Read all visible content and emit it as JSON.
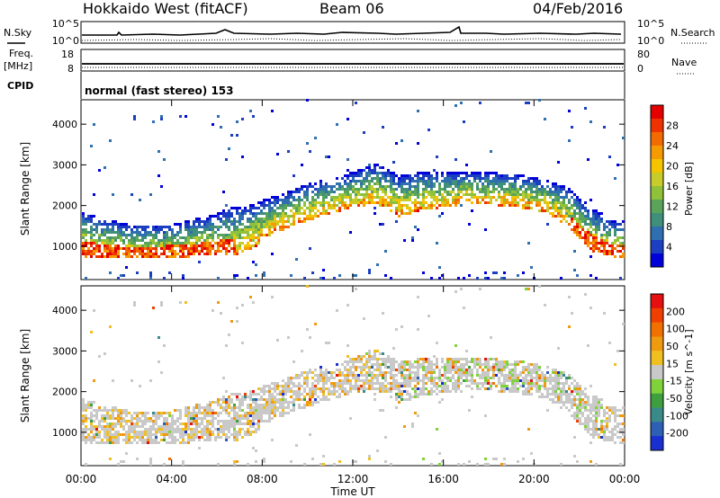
{
  "header": {
    "title": "Hokkaido West (fitACF)",
    "beam": "Beam 06",
    "date": "04/Feb/2016"
  },
  "status": {
    "nsky_label": "N.Sky",
    "nsearch_label": "N.Search",
    "freq_label_1": "Freq.",
    "freq_label_2": "[MHz]",
    "nave_label": "Nave",
    "cpid_label": "CPID",
    "cpid_value": "normal (fast stereo) 153",
    "noise_ticks_left": [
      "10^5",
      "10^0"
    ],
    "noise_ticks_right": [
      "10^5",
      "10^0"
    ],
    "freq_ticks": [
      "18",
      "8"
    ],
    "nave_ticks": [
      "80",
      "0"
    ]
  },
  "chart_data": [
    {
      "type": "heatmap",
      "title": "",
      "xlabel": "",
      "ylabel": "Slant Range [km]",
      "x_ticks": [
        "00:00",
        "04:00",
        "08:00",
        "12:00",
        "16:00",
        "20:00",
        "00:00"
      ],
      "y_ticks": [
        1000,
        2000,
        3000,
        4000
      ],
      "xlim_hours": [
        0,
        24
      ],
      "ylim_km": [
        180,
        4600
      ],
      "colorbar": {
        "label": "Power [dB]",
        "ticks": [
          "28",
          "24",
          "20",
          "16",
          "12",
          "8",
          "4"
        ],
        "colors": [
          "#0000d9",
          "#1c3fc2",
          "#2f6fb0",
          "#3f8f7a",
          "#5aa35a",
          "#8fc23a",
          "#c8cc2a",
          "#f5c400",
          "#f59a00",
          "#f26b00",
          "#ee3300",
          "#e50000"
        ]
      }
    },
    {
      "type": "heatmap",
      "title": "",
      "xlabel": "Time UT",
      "ylabel": "Slant Range [km]",
      "x_ticks": [
        "00:00",
        "04:00",
        "08:00",
        "12:00",
        "16:00",
        "20:00",
        "00:00"
      ],
      "y_ticks": [
        1000,
        2000,
        3000,
        4000
      ],
      "xlim_hours": [
        0,
        24
      ],
      "ylim_km": [
        180,
        4600
      ],
      "colorbar": {
        "label": "Velocity [m s^-1]",
        "ticks": [
          "200",
          "100",
          "50",
          "15",
          "-15",
          "-50",
          "-100",
          "-200"
        ],
        "colors": [
          "#1a2fd0",
          "#2d5fb5",
          "#3a8a8a",
          "#3f9f3f",
          "#7fd23a",
          "#c9c9c9",
          "#f0c020",
          "#f09a10",
          "#f07000",
          "#f04000",
          "#e51010"
        ]
      }
    }
  ]
}
